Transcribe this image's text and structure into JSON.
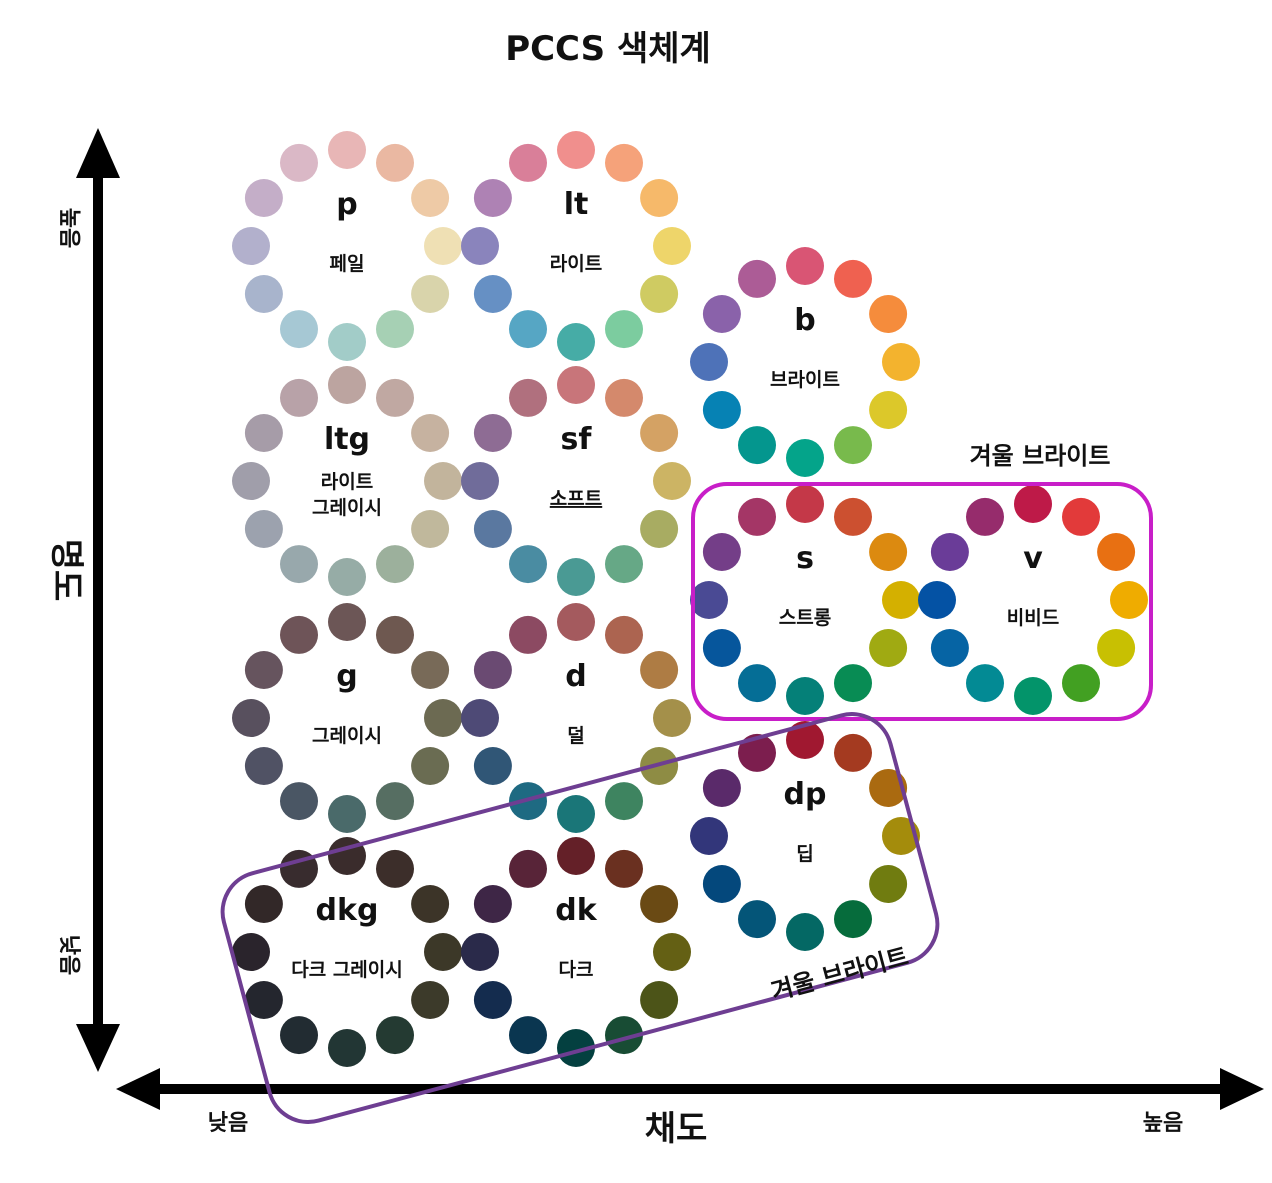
{
  "title": "PCCS  색체계",
  "axes": {
    "y_label": "명도",
    "y_high": "높음",
    "y_low": "낮음",
    "x_label": "채도",
    "x_low": "낮음",
    "x_high": "높음"
  },
  "tones": [
    {
      "id": "p",
      "code": "p",
      "name_lines": [
        "페일"
      ],
      "underline": false,
      "colors": [
        "#e8b6b6",
        "#eab8a2",
        "#eecaa6",
        "#efe0b4",
        "#d9d4ab",
        "#a6d0b4",
        "#a2ccc8",
        "#a6c8d4",
        "#a8b4cc",
        "#b2b0cc",
        "#c4aec8",
        "#dab8c6"
      ]
    },
    {
      "id": "lt",
      "code": "lt",
      "name_lines": [
        "라이트"
      ],
      "underline": false,
      "colors": [
        "#f08f8d",
        "#f5a27a",
        "#f6b96a",
        "#eed56a",
        "#cfcb62",
        "#7ccc9f",
        "#46aca6",
        "#56a6c4",
        "#6690c4",
        "#8a84bc",
        "#ae82b4",
        "#d97f99"
      ]
    },
    {
      "id": "b",
      "code": "b",
      "name_lines": [
        "브라이트"
      ],
      "underline": false,
      "colors": [
        "#d95574",
        "#ef6150",
        "#f58c3c",
        "#f3b32e",
        "#dcc82a",
        "#78ba4c",
        "#04a48a",
        "#04968e",
        "#0682b4",
        "#4e72b8",
        "#8a62aa",
        "#ac5c96"
      ]
    },
    {
      "id": "ltg",
      "code": "ltg",
      "name_lines": [
        "라이트",
        "그레이시"
      ],
      "underline": false,
      "colors": [
        "#bca4a0",
        "#c0a8a2",
        "#c6b2a0",
        "#c2b49c",
        "#c0b89c",
        "#9cb09c",
        "#96aca6",
        "#98a8ac",
        "#9ca2ae",
        "#a09eaa",
        "#a69ca8",
        "#b8a2a8"
      ]
    },
    {
      "id": "sf",
      "code": "sf",
      "name_lines": [
        "소프트"
      ],
      "underline": true,
      "colors": [
        "#c8757a",
        "#d4896c",
        "#d4a264",
        "#ccb464",
        "#a8ac62",
        "#66a886",
        "#4a9a94",
        "#4a8ca2",
        "#5a78a0",
        "#706c9a",
        "#8e6c94",
        "#b0707e"
      ]
    },
    {
      "id": "g",
      "code": "g",
      "name_lines": [
        "그레이시"
      ],
      "underline": false,
      "colors": [
        "#6c5656",
        "#6e5850",
        "#786a58",
        "#6c6a52",
        "#6a6c52",
        "#566e62",
        "#4a6a6a",
        "#4a5664",
        "#505264",
        "#58505e",
        "#66545e",
        "#6e5458"
      ]
    },
    {
      "id": "d",
      "code": "d",
      "name_lines": [
        "덜"
      ],
      "underline": false,
      "colors": [
        "#a45a5e",
        "#ac6450",
        "#ae7c44",
        "#a4904a",
        "#8e8c44",
        "#3e8460",
        "#1a7678",
        "#1e6a82",
        "#305676",
        "#4e4a76",
        "#6a4a72",
        "#8c4a62"
      ]
    },
    {
      "id": "s",
      "code": "s",
      "name_lines": [
        "스트롱"
      ],
      "underline": false,
      "colors": [
        "#c43848",
        "#cc5030",
        "#dc8a10",
        "#d4b000",
        "#a0aa12",
        "#088c54",
        "#058078",
        "#056e96",
        "#06569c",
        "#4a4a94",
        "#743e88",
        "#a43666"
      ]
    },
    {
      "id": "v",
      "code": "v",
      "name_lines": [
        "비비드"
      ],
      "underline": false,
      "colors": [
        "#be1a48",
        "#e23a3a",
        "#e87012",
        "#efac00",
        "#c8c002",
        "#42a022",
        "#03946a",
        "#038a94",
        "#0664a4",
        "#0452a4",
        "#6a3c98",
        "#962c6c"
      ]
    },
    {
      "id": "dp",
      "code": "dp",
      "name_lines": [
        "딥"
      ],
      "underline": false,
      "colors": [
        "#a01830",
        "#a43a20",
        "#aa6a10",
        "#a48c0c",
        "#707c10",
        "#066c3c",
        "#046864",
        "#045578",
        "#04487c",
        "#32367a",
        "#5a2a6a",
        "#7c1e4e"
      ]
    },
    {
      "id": "dkg",
      "code": "dkg",
      "name_lines": [
        "다크 그레이시"
      ],
      "underline": false,
      "colors": [
        "#3a2c2c",
        "#3c2e2a",
        "#3c3428",
        "#3c3828",
        "#3c3a2a",
        "#243a32",
        "#223634",
        "#222c32",
        "#24262e",
        "#2a242c",
        "#322828",
        "#382c2e"
      ]
    },
    {
      "id": "dk",
      "code": "dk",
      "name_lines": [
        "다크"
      ],
      "underline": false,
      "colors": [
        "#642028",
        "#6a3020",
        "#6a4a14",
        "#646014",
        "#4c5418",
        "#184c34",
        "#044040",
        "#0a3650",
        "#142c4e",
        "#2a2a4a",
        "#3e2646",
        "#582438"
      ]
    }
  ],
  "groups": [
    {
      "id": "winter-bright-top",
      "label": "겨울 브라이트",
      "color": "#c81ec8"
    },
    {
      "id": "winter-bright-bottom",
      "label": "겨울 브라이트",
      "color": "#6e3e92"
    }
  ],
  "colors": {
    "axis": "#000000",
    "text": "#111111"
  }
}
